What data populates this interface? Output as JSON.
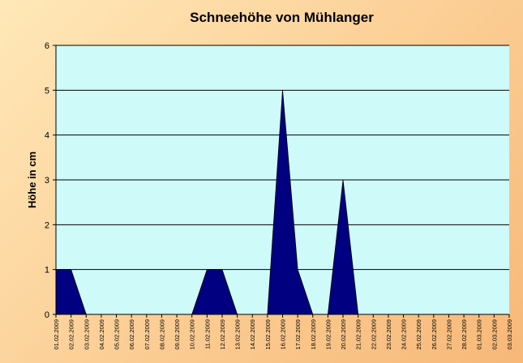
{
  "chart_data": {
    "type": "area",
    "title": "Schneehöhe von Mühlanger",
    "xlabel": "",
    "ylabel": "Höhe in cm",
    "ylim": [
      0,
      6
    ],
    "yticks": [
      "0",
      "1",
      "2",
      "3",
      "4",
      "5",
      "6"
    ],
    "grid": true,
    "legend": "none",
    "plot_color": "#cffafa",
    "series_color": "#000080",
    "series": [
      {
        "x": [
          "01.02.2009",
          "02.02.2009",
          "03.02.2009",
          "04.02.2009",
          "05.02.2009",
          "06.02.2009",
          "07.02.2009",
          "08.02.2009",
          "09.02.2009",
          "10.02.2009",
          "11.02.2009",
          "12.02.2009",
          "13.02.2009",
          "14.02.2009",
          "15.02.2009",
          "16.02.2009",
          "17.02.2009",
          "18.02.2009",
          "19.02.2009",
          "20.02.2009",
          "21.02.2009",
          "22.02.2009",
          "23.02.2009",
          "24.02.2009",
          "25.02.2009",
          "26.02.2009",
          "27.02.2009",
          "28.02.2009",
          "01.03.2009",
          "02.03.2009",
          "03.03.2009"
        ],
        "values": [
          1,
          1,
          0,
          0,
          0,
          0,
          0,
          0,
          0,
          0,
          1,
          1,
          0,
          0,
          0,
          5,
          1,
          0,
          0,
          3,
          0,
          0,
          0,
          0,
          0,
          0,
          0,
          0,
          0,
          0,
          0
        ]
      }
    ]
  }
}
